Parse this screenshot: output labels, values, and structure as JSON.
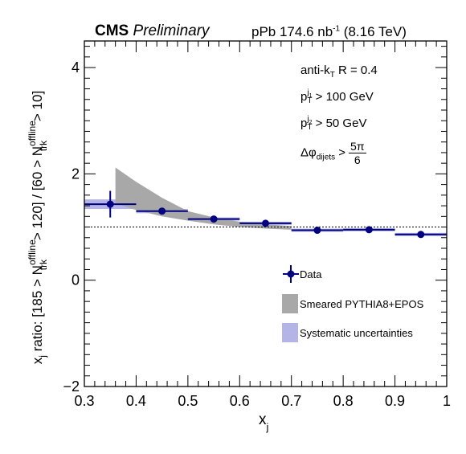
{
  "header": {
    "experiment": "CMS",
    "status": "Preliminary",
    "dataset_prefix": "pPb 174.6 nb",
    "dataset_exp": "-1",
    "energy": "(8.16 TeV)"
  },
  "annotations": {
    "algo_prefix": "anti-k",
    "algo_sub": "T",
    "algo_suffix": " R = 0.4",
    "pt1_prefix": "p",
    "pt1_sup": "j",
    "pt1_supsub": "1",
    "pt1_sub": "T",
    "pt1_suffix": " > 100 GeV",
    "pt2_prefix": "p",
    "pt2_sup": "j",
    "pt2_supsub": "2",
    "pt2_sub": "T",
    "pt2_suffix": " > 50 GeV",
    "dphi_prefix": "Δφ",
    "dphi_sub": "dijets",
    "dphi_op": " >",
    "dphi_num": "5π",
    "dphi_den": "6"
  },
  "chart_data": {
    "type": "scatter",
    "xlabel": "x_j",
    "ylabel": "x_j ratio: [185 > N_trk^offline > 120] / [60 > N_trk^offline > 10]",
    "xlim": [
      0.3,
      1.0
    ],
    "ylim": [
      -2,
      4.5
    ],
    "x_ticks": [
      "0.3",
      "0.4",
      "0.5",
      "0.6",
      "0.7",
      "0.8",
      "0.9",
      "1"
    ],
    "y_ticks": [
      "−2",
      "0",
      "2",
      "4"
    ],
    "reference_line": 1.0,
    "grid": false,
    "legend_position": "right",
    "series": [
      {
        "name": "Data",
        "color": "#000080",
        "points": [
          {
            "x": 0.35,
            "y": 1.43,
            "xerr": 0.05,
            "yerr": 0.25,
            "syst": 0.09
          },
          {
            "x": 0.45,
            "y": 1.3,
            "xerr": 0.05,
            "yerr": 0.05,
            "syst": 0.04
          },
          {
            "x": 0.55,
            "y": 1.15,
            "xerr": 0.05,
            "yerr": 0.04,
            "syst": 0.03
          },
          {
            "x": 0.65,
            "y": 1.07,
            "xerr": 0.05,
            "yerr": 0.04,
            "syst": 0.03
          },
          {
            "x": 0.75,
            "y": 0.94,
            "xerr": 0.05,
            "yerr": 0.03,
            "syst": 0.03
          },
          {
            "x": 0.85,
            "y": 0.95,
            "xerr": 0.05,
            "yerr": 0.03,
            "syst": 0.03
          },
          {
            "x": 0.95,
            "y": 0.86,
            "xerr": 0.05,
            "yerr": 0.03,
            "syst": 0.03
          }
        ]
      },
      {
        "name": "Smeared PYTHIA8+EPOS",
        "color": "#a8a8a8",
        "band": [
          {
            "x": 0.36,
            "low": 1.45,
            "high": 2.12
          },
          {
            "x": 0.4,
            "low": 1.32,
            "high": 1.85
          },
          {
            "x": 0.45,
            "low": 1.2,
            "high": 1.55
          },
          {
            "x": 0.5,
            "low": 1.12,
            "high": 1.3
          },
          {
            "x": 0.55,
            "low": 1.05,
            "high": 1.18
          },
          {
            "x": 0.6,
            "low": 1.0,
            "high": 1.1
          },
          {
            "x": 0.65,
            "low": 0.97,
            "high": 1.05
          },
          {
            "x": 0.7,
            "low": 0.95,
            "high": 1.02
          }
        ]
      },
      {
        "name": "Systematic uncertainties",
        "color": "#b4b4e6"
      }
    ]
  }
}
